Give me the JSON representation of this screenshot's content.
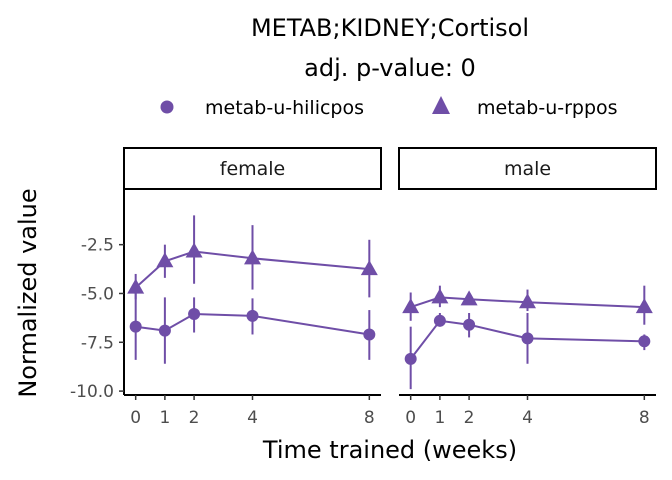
{
  "chart_data": {
    "type": "line",
    "title": "METAB;KIDNEY;Cortisol",
    "subtitle": "adj. p-value: 0",
    "xlabel": "Time trained (weeks)",
    "ylabel": "Normalized value",
    "x_ticks": [
      0,
      1,
      2,
      4,
      8
    ],
    "y_ticks": [
      -2.5,
      -5.0,
      -7.5,
      -10.0
    ],
    "y_tick_labels": [
      "-2.5",
      "-5.0",
      "-7.5",
      "-10.0"
    ],
    "ylim": [
      -10.2,
      0.3
    ],
    "xlim": [
      -0.4,
      8.4
    ],
    "color": "#6f4ea7",
    "legend_position": "top",
    "legend": [
      {
        "name": "metab-u-hilicpos",
        "marker": "circle"
      },
      {
        "name": "metab-u-rppos",
        "marker": "triangle"
      }
    ],
    "panels": [
      {
        "label": "female",
        "series": [
          {
            "name": "metab-u-hilicpos",
            "marker": "circle",
            "x": [
              0,
              1,
              2,
              4,
              8
            ],
            "y": [
              -6.7,
              -6.9,
              -6.05,
              -6.15,
              -7.1
            ],
            "ymin": [
              -8.4,
              -8.6,
              -7.0,
              -7.1,
              -8.4
            ],
            "ymax": [
              -5.0,
              -5.2,
              -5.2,
              -5.25,
              -5.85
            ]
          },
          {
            "name": "metab-u-rppos",
            "marker": "triangle",
            "x": [
              0,
              1,
              2,
              4,
              8
            ],
            "y": [
              -4.7,
              -3.35,
              -2.85,
              -3.2,
              -3.75
            ],
            "ymin": [
              -5.3,
              -4.2,
              -4.5,
              -4.8,
              -5.2
            ],
            "ymax": [
              -4.0,
              -2.5,
              -1.0,
              -1.5,
              -2.25
            ]
          }
        ]
      },
      {
        "label": "male",
        "series": [
          {
            "name": "metab-u-hilicpos",
            "marker": "circle",
            "x": [
              0,
              1,
              2,
              4,
              8
            ],
            "y": [
              -8.35,
              -6.4,
              -6.6,
              -7.3,
              -7.45
            ],
            "ymin": [
              -9.9,
              -6.7,
              -7.25,
              -8.6,
              -7.9
            ],
            "ymax": [
              -6.7,
              -6.0,
              -6.0,
              -6.0,
              -7.1
            ]
          },
          {
            "name": "metab-u-rppos",
            "marker": "triangle",
            "x": [
              0,
              1,
              2,
              4,
              8
            ],
            "y": [
              -5.7,
              -5.2,
              -5.3,
              -5.45,
              -5.7
            ],
            "ymin": [
              -6.4,
              -5.7,
              -5.5,
              -5.9,
              -6.6
            ],
            "ymax": [
              -4.95,
              -4.6,
              -5.0,
              -4.8,
              -4.6
            ]
          }
        ]
      }
    ]
  }
}
